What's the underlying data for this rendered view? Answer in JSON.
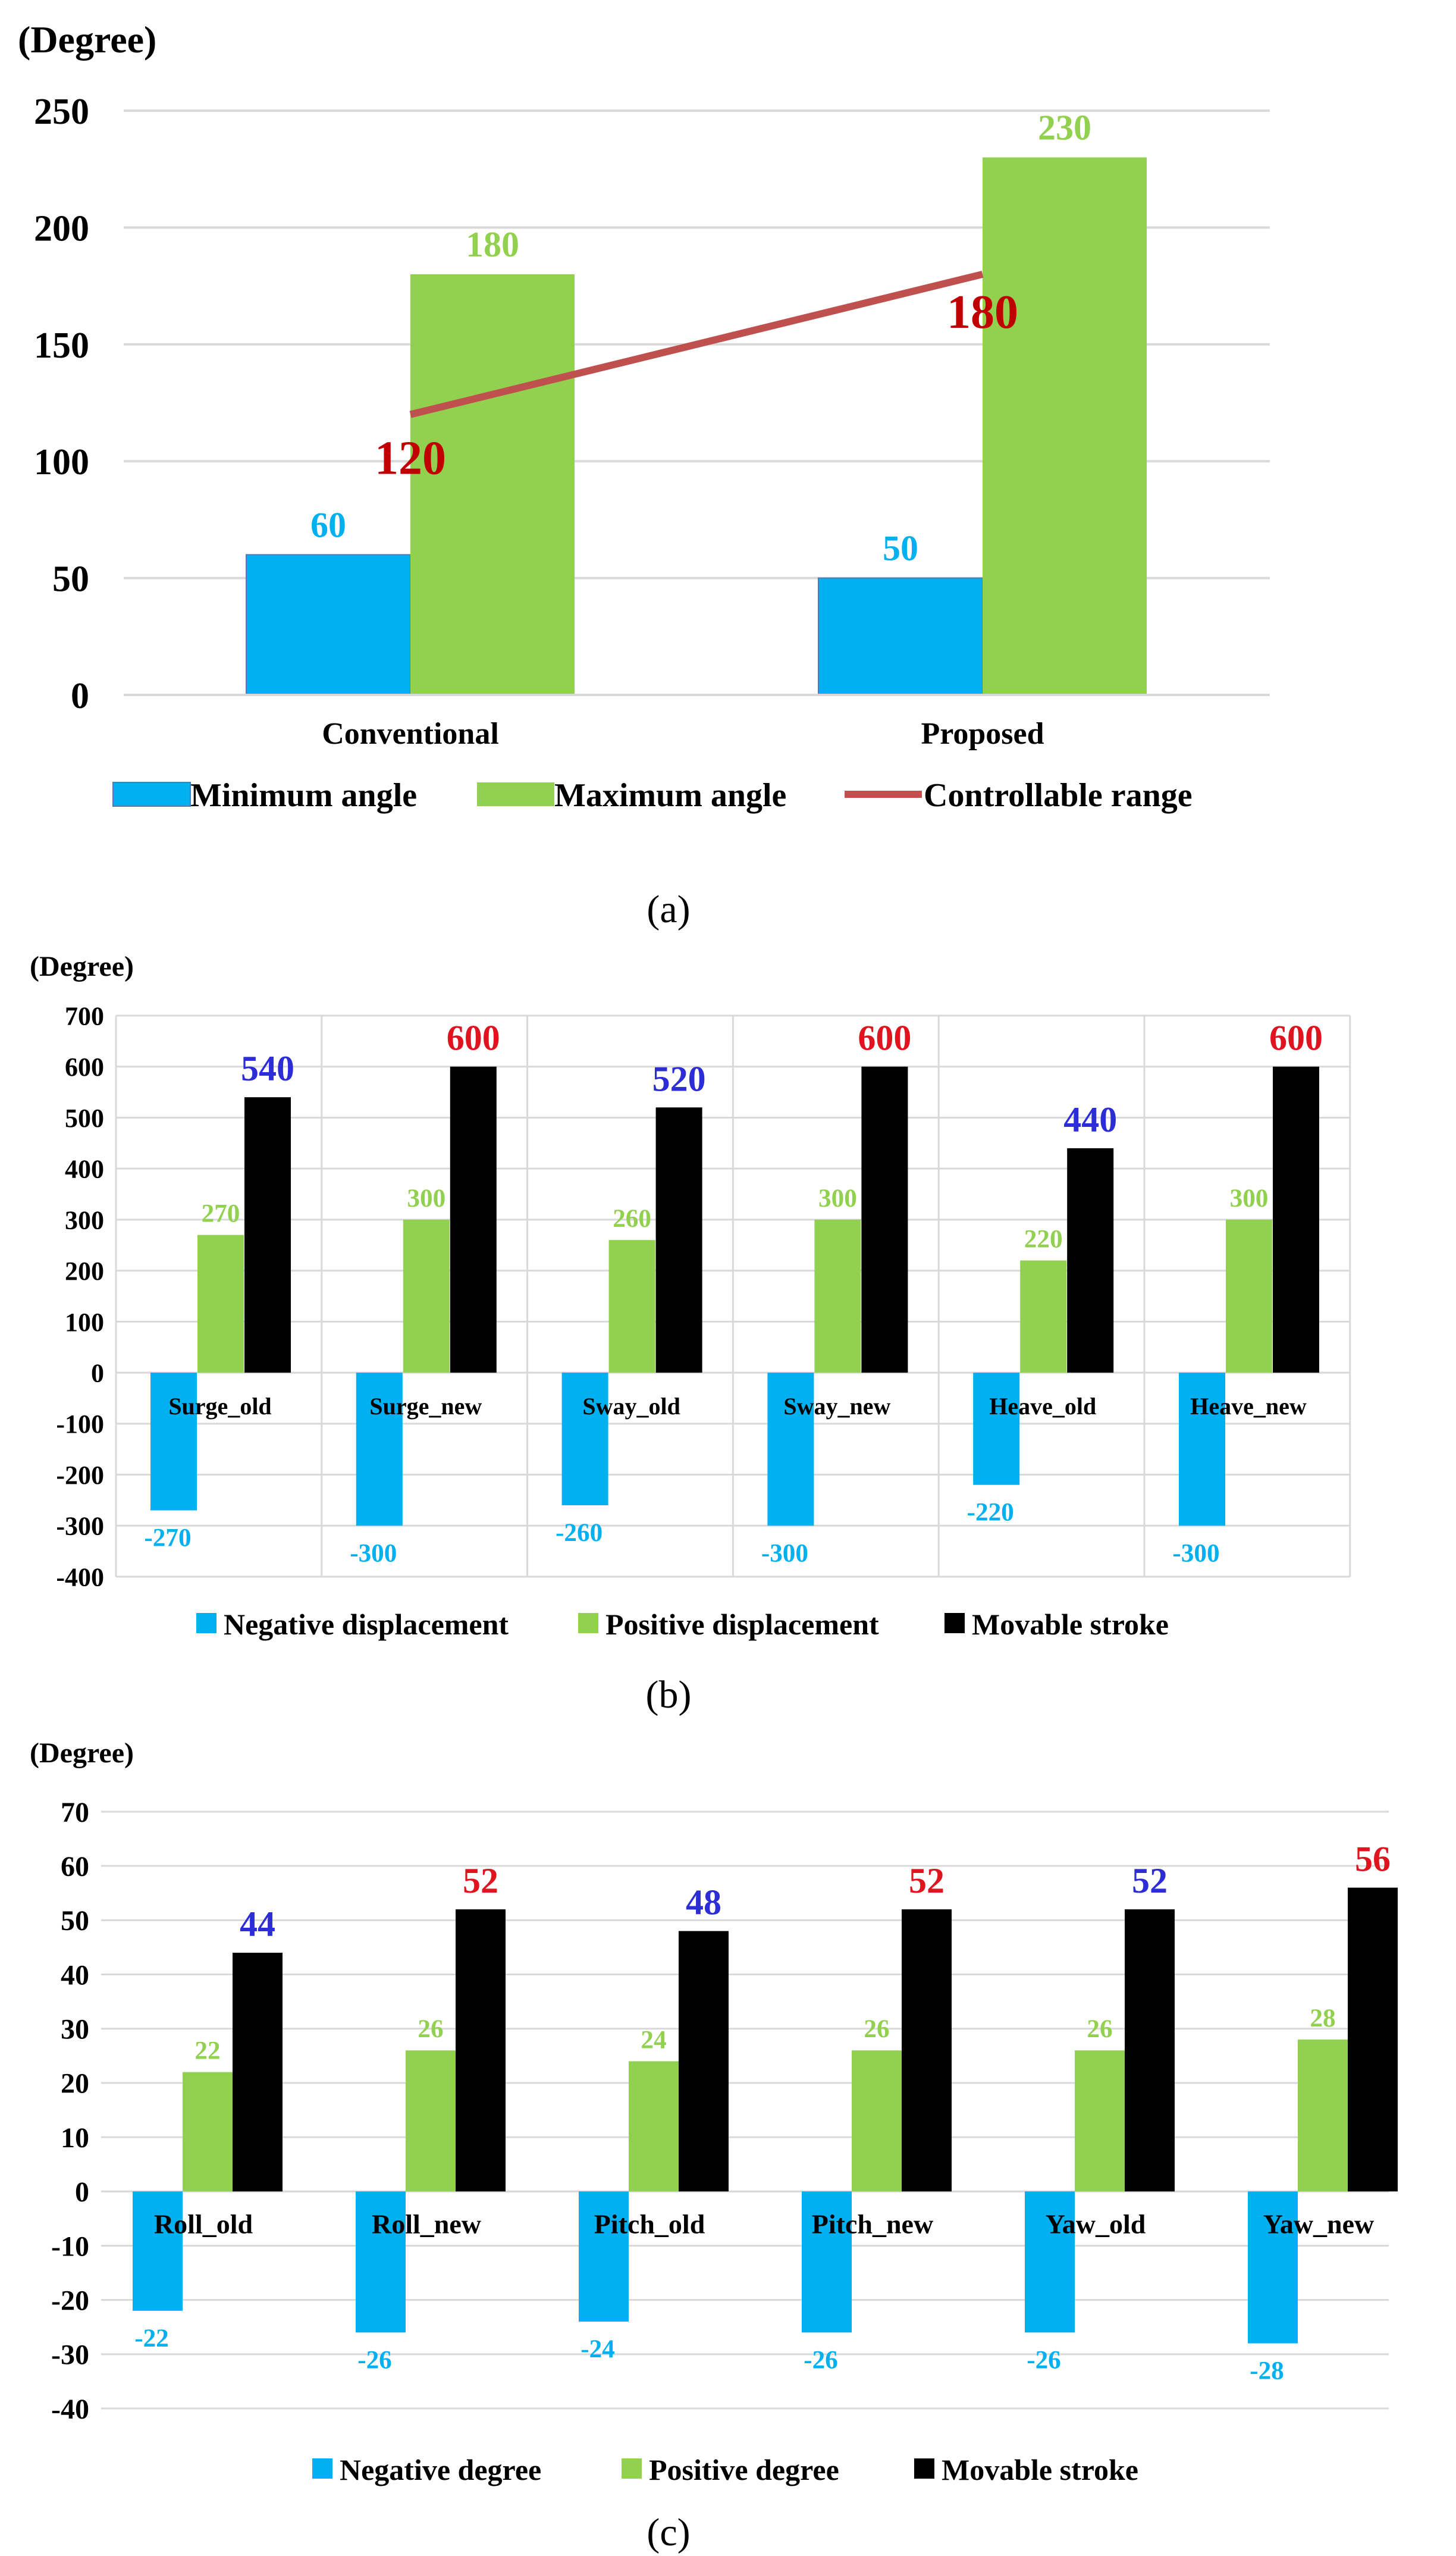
{
  "colors": {
    "min": "#00b0f0",
    "max": "#92d050",
    "stroke": "#000000",
    "range": "#c0504d",
    "blue_label": "#2d2dd8",
    "red_label": "#e0141e",
    "range_label": "#c00000"
  },
  "chart_data": [
    {
      "type": "bar",
      "id": "a",
      "caption": "(a)",
      "ylabel": "(Degree)",
      "ylim": [
        0,
        250
      ],
      "yticks": [
        "0",
        "50",
        "100",
        "150",
        "200",
        "250"
      ],
      "categories": [
        "Conventional",
        "Proposed"
      ],
      "series": [
        {
          "name": "Minimum angle",
          "values": [
            60,
            50
          ],
          "labels": [
            "60",
            "50"
          ]
        },
        {
          "name": "Maximum angle",
          "values": [
            180,
            230
          ],
          "labels": [
            "180",
            "230"
          ]
        },
        {
          "name": "Controllable range",
          "type": "line",
          "values": [
            120,
            180
          ],
          "labels": [
            "120",
            "180"
          ]
        }
      ],
      "legend": [
        "Minimum angle",
        "Maximum angle",
        "Controllable range"
      ]
    },
    {
      "type": "bar",
      "id": "b",
      "caption": "(b)",
      "ylabel": "(Degree)",
      "ylim": [
        -400,
        700
      ],
      "yticks": [
        "-400",
        "-300",
        "-200",
        "-100",
        "0",
        "100",
        "200",
        "300",
        "400",
        "500",
        "600",
        "700"
      ],
      "categories": [
        "Surge_old",
        "Surge_new",
        "Sway_old",
        "Sway_new",
        "Heave_old",
        "Heave_new"
      ],
      "series": [
        {
          "name": "Negative displacement",
          "values": [
            -270,
            -300,
            -260,
            -300,
            -220,
            -300
          ],
          "labels": [
            "-270",
            "-300",
            "-260",
            "-300",
            "-220",
            "-300"
          ]
        },
        {
          "name": "Positive displacement",
          "values": [
            270,
            300,
            260,
            300,
            220,
            300
          ],
          "labels": [
            "270",
            "300",
            "260",
            "300",
            "220",
            "300"
          ]
        },
        {
          "name": "Movable stroke",
          "values": [
            540,
            600,
            520,
            600,
            440,
            600
          ],
          "labels": [
            "540",
            "600",
            "520",
            "600",
            "440",
            "600"
          ]
        }
      ],
      "legend": [
        "Negative displacement",
        "Positive displacement",
        "Movable stroke"
      ]
    },
    {
      "type": "bar",
      "id": "c",
      "caption": "(c)",
      "ylabel": "(Degree)",
      "ylim": [
        -40,
        70
      ],
      "yticks": [
        "-40",
        "-30",
        "-20",
        "-10",
        "0",
        "10",
        "20",
        "30",
        "40",
        "50",
        "60",
        "70"
      ],
      "categories": [
        "Roll_old",
        "Roll_new",
        "Pitch_old",
        "Pitch_new",
        "Yaw_old",
        "Yaw_new"
      ],
      "series": [
        {
          "name": "Negative degree",
          "values": [
            -22,
            -26,
            -24,
            -26,
            -26,
            -28
          ],
          "labels": [
            "-22",
            "-26",
            "-24",
            "-26",
            "-26",
            "-28"
          ]
        },
        {
          "name": "Positive degree",
          "values": [
            22,
            26,
            24,
            26,
            26,
            28
          ],
          "labels": [
            "22",
            "26",
            "24",
            "26",
            "26",
            "28"
          ]
        },
        {
          "name": "Movable stroke",
          "values": [
            44,
            52,
            48,
            52,
            52,
            56
          ],
          "labels": [
            "44",
            "52",
            "48",
            "52",
            "52",
            "56"
          ]
        }
      ],
      "legend": [
        "Negative degree",
        "Positive degree",
        "Movable stroke"
      ]
    }
  ]
}
